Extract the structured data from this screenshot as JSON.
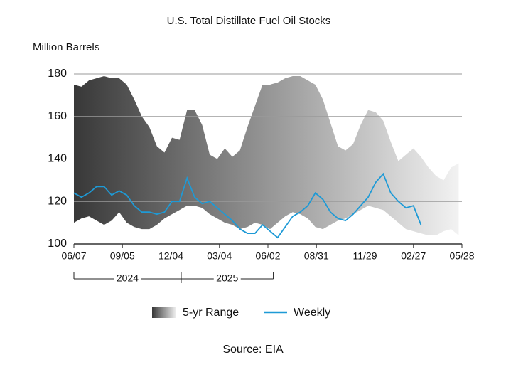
{
  "chart_data": {
    "type": "range_line",
    "title": "U.S. Total Distillate Fuel Oil Stocks",
    "y_axis_label": "Million Barrels",
    "source": "Source: EIA",
    "xlim": [
      0,
      720
    ],
    "xticks": [
      {
        "value": 0,
        "label": "06/07"
      },
      {
        "value": 90,
        "label": "09/05"
      },
      {
        "value": 180,
        "label": "12/04"
      },
      {
        "value": 270,
        "label": "03/04"
      },
      {
        "value": 360,
        "label": "06/02"
      },
      {
        "value": 450,
        "label": "08/31"
      },
      {
        "value": 540,
        "label": "11/29"
      },
      {
        "value": 630,
        "label": "02/27"
      },
      {
        "value": 720,
        "label": "05/28"
      }
    ],
    "ylim": [
      100,
      180
    ],
    "yticks": [
      100,
      120,
      140,
      160,
      180
    ],
    "grid": true,
    "periods": [
      {
        "label": "2024",
        "start": 0,
        "end": 199
      },
      {
        "label": "2025",
        "start": 199,
        "end": 370
      }
    ],
    "series": [
      {
        "name": "5-yr Range",
        "color_start": "#383838",
        "color_end": "#f2f2f2",
        "x": [
          0,
          14,
          28,
          42,
          56,
          70,
          84,
          98,
          112,
          126,
          140,
          154,
          168,
          182,
          196,
          210,
          224,
          238,
          252,
          266,
          280,
          294,
          308,
          322,
          336,
          350,
          364,
          378,
          392,
          406,
          420,
          434,
          448,
          462,
          476,
          490,
          504,
          518,
          532,
          546,
          560,
          574,
          588,
          602,
          616,
          630,
          644,
          658,
          672,
          686,
          700,
          714
        ],
        "high": [
          175,
          174,
          177,
          178,
          179,
          178,
          178,
          175,
          168,
          160,
          155,
          146,
          143,
          150,
          149,
          163,
          163,
          156,
          142,
          140,
          145,
          141,
          144,
          155,
          165,
          175,
          175,
          176,
          178,
          179,
          179,
          177,
          175,
          168,
          157,
          146,
          144,
          147,
          156,
          163,
          162,
          158,
          148,
          139,
          142,
          145,
          141,
          136,
          132,
          130,
          136,
          138
        ],
        "low": [
          110,
          112,
          113,
          111,
          109,
          111,
          115,
          110,
          108,
          107,
          107,
          109,
          112,
          114,
          116,
          118,
          118,
          117,
          114,
          112,
          110,
          109,
          107,
          108,
          110,
          109,
          107,
          110,
          113,
          115,
          114,
          112,
          108,
          107,
          109,
          111,
          112,
          114,
          116,
          118,
          117,
          116,
          113,
          110,
          107,
          106,
          105,
          104,
          104,
          106,
          107,
          104
        ]
      },
      {
        "name": "Weekly",
        "color": "#1e9ad6",
        "x": [
          0,
          14,
          28,
          42,
          56,
          70,
          84,
          98,
          112,
          126,
          140,
          154,
          168,
          182,
          196,
          210,
          224,
          238,
          252,
          266,
          280,
          294,
          308,
          322,
          336,
          350,
          364,
          378,
          392,
          406,
          420,
          434,
          448,
          462,
          476,
          490,
          504,
          518,
          532,
          546,
          560,
          574,
          588,
          602,
          616,
          630,
          644
        ],
        "values": [
          124,
          122,
          124,
          127,
          127,
          123,
          125,
          123,
          118,
          115,
          115,
          114,
          115,
          120,
          120,
          131,
          122,
          119,
          120,
          117,
          114,
          111,
          107,
          105,
          105,
          109,
          106,
          103,
          108,
          113,
          115,
          118,
          124,
          121,
          115,
          112,
          111,
          114,
          118,
          122,
          129,
          133,
          124,
          120,
          117,
          118,
          109
        ]
      }
    ]
  }
}
